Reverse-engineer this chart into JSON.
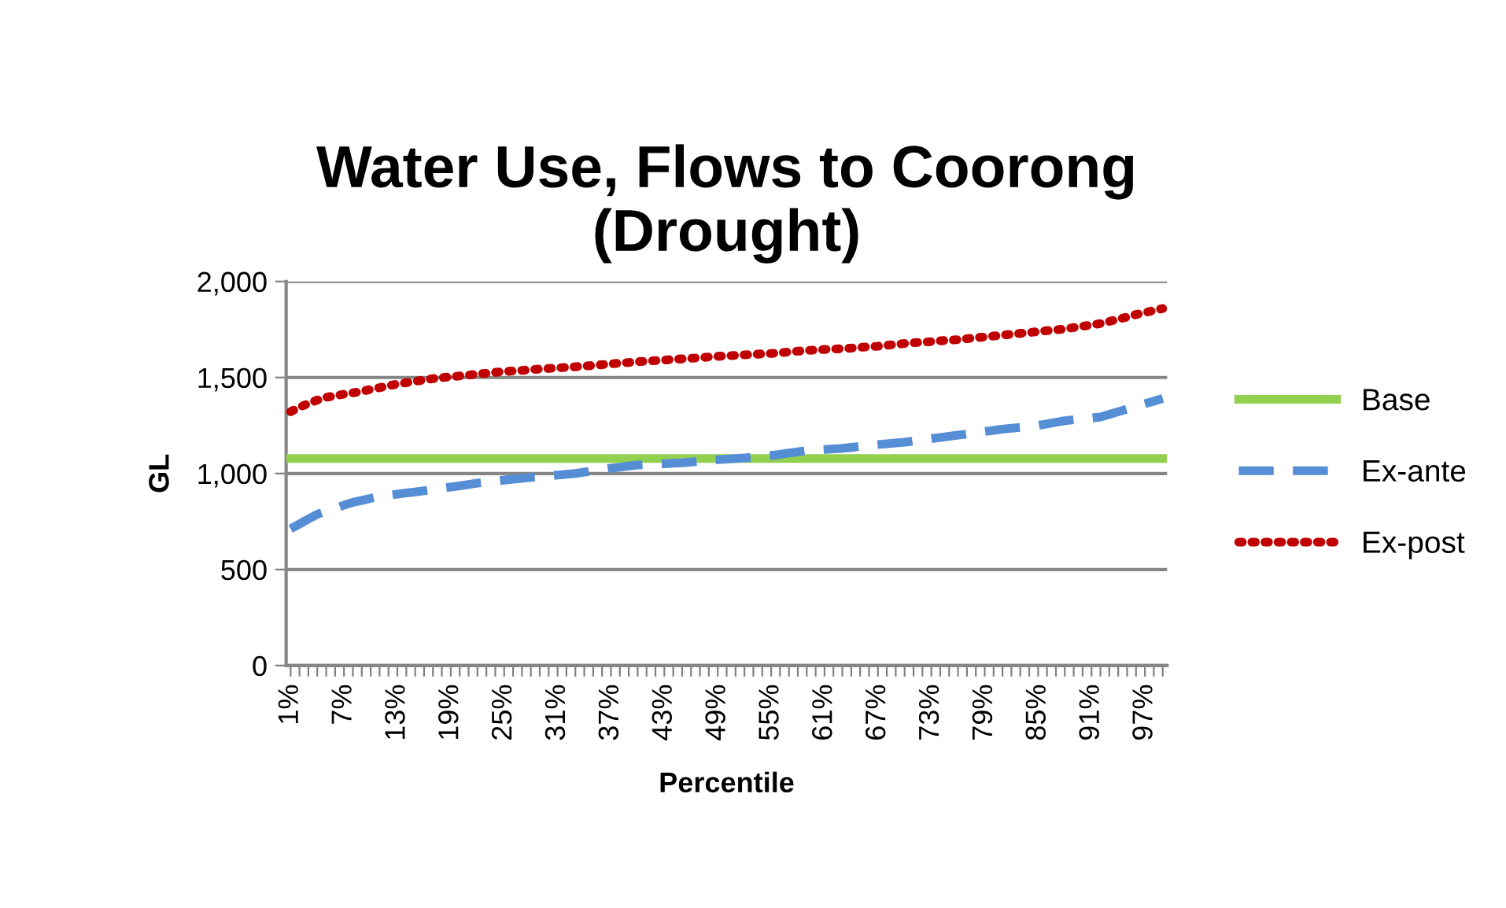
{
  "chart_data": {
    "type": "line",
    "title": "Water Use, Flows to Coorong\n(Drought)",
    "xlabel": "Percentile",
    "ylabel": "GL",
    "categories": [
      "1%",
      null,
      null,
      null,
      null,
      null,
      "7%",
      null,
      null,
      null,
      null,
      null,
      "13%",
      null,
      null,
      null,
      null,
      null,
      "19%",
      null,
      null,
      null,
      null,
      null,
      "25%",
      null,
      null,
      null,
      null,
      null,
      "31%",
      null,
      null,
      null,
      null,
      null,
      "37%",
      null,
      null,
      null,
      null,
      null,
      "43%",
      null,
      null,
      null,
      null,
      null,
      "49%",
      null,
      null,
      null,
      null,
      null,
      "55%",
      null,
      null,
      null,
      null,
      null,
      "61%",
      null,
      null,
      null,
      null,
      null,
      "67%",
      null,
      null,
      null,
      null,
      null,
      "73%",
      null,
      null,
      null,
      null,
      null,
      "79%",
      null,
      null,
      null,
      null,
      null,
      "85%",
      null,
      null,
      null,
      null,
      null,
      "91%",
      null,
      null,
      null,
      null,
      null,
      "97%",
      null,
      null
    ],
    "series": [
      {
        "name": "Base",
        "color": "#92d050",
        "line_style": "solid",
        "values": [
          1078,
          1078,
          1078,
          1078,
          1078,
          1078,
          1078,
          1078,
          1078,
          1078,
          1078,
          1078,
          1078,
          1078,
          1078,
          1078,
          1078,
          1078,
          1078,
          1078,
          1078,
          1078,
          1078,
          1078,
          1078,
          1078,
          1078,
          1078,
          1078,
          1078,
          1078,
          1078,
          1078,
          1078,
          1078,
          1078,
          1078,
          1078,
          1078,
          1078,
          1078,
          1078,
          1078,
          1078,
          1078,
          1078,
          1078,
          1078,
          1078,
          1078,
          1078,
          1078,
          1078,
          1078,
          1078,
          1078,
          1078,
          1078,
          1078,
          1078,
          1078,
          1078,
          1078,
          1078,
          1078,
          1078,
          1078,
          1078,
          1078,
          1078,
          1078,
          1078,
          1078,
          1078,
          1078,
          1078,
          1078,
          1078,
          1078,
          1078,
          1078,
          1078,
          1078,
          1078,
          1078,
          1078,
          1078,
          1078,
          1078,
          1078,
          1078,
          1078,
          1078,
          1078,
          1078,
          1078,
          1078,
          1078,
          1078
        ]
      },
      {
        "name": "Ex-ante",
        "color": "#558ed5",
        "line_style": "dashed",
        "values": [
          712,
          737,
          763,
          788,
          804,
          819,
          835,
          850,
          860,
          871,
          881,
          887,
          893,
          899,
          904,
          910,
          916,
          923,
          930,
          936,
          943,
          950,
          955,
          961,
          966,
          971,
          975,
          980,
          984,
          988,
          992,
          996,
          1000,
          1007,
          1014,
          1021,
          1028,
          1033,
          1039,
          1044,
          1046,
          1049,
          1051,
          1054,
          1056,
          1060,
          1065,
          1069,
          1072,
          1075,
          1078,
          1081,
          1085,
          1090,
          1094,
          1100,
          1107,
          1113,
          1119,
          1122,
          1125,
          1128,
          1131,
          1136,
          1142,
          1147,
          1151,
          1155,
          1159,
          1163,
          1169,
          1176,
          1182,
          1188,
          1194,
          1200,
          1206,
          1212,
          1219,
          1225,
          1231,
          1236,
          1240,
          1245,
          1250,
          1258,
          1267,
          1275,
          1280,
          1284,
          1289,
          1294,
          1308,
          1322,
          1336,
          1350,
          1364,
          1377,
          1391
        ]
      },
      {
        "name": "Ex-post",
        "color": "#c00000",
        "line_style": "dotted",
        "values": [
          1322,
          1345,
          1365,
          1382,
          1397,
          1405,
          1413,
          1420,
          1428,
          1438,
          1447,
          1457,
          1466,
          1473,
          1480,
          1487,
          1494,
          1499,
          1504,
          1508,
          1513,
          1518,
          1522,
          1527,
          1531,
          1534,
          1537,
          1541,
          1544,
          1547,
          1550,
          1553,
          1556,
          1559,
          1563,
          1567,
          1571,
          1575,
          1578,
          1582,
          1585,
          1588,
          1591,
          1594,
          1597,
          1600,
          1603,
          1607,
          1610,
          1613,
          1615,
          1618,
          1620,
          1623,
          1625,
          1629,
          1633,
          1637,
          1641,
          1643,
          1646,
          1648,
          1650,
          1653,
          1657,
          1660,
          1663,
          1668,
          1672,
          1677,
          1681,
          1684,
          1687,
          1691,
          1694,
          1697,
          1702,
          1707,
          1711,
          1716,
          1721,
          1725,
          1730,
          1734,
          1739,
          1744,
          1748,
          1753,
          1760,
          1767,
          1774,
          1781,
          1792,
          1803,
          1815,
          1828,
          1838,
          1849,
          1859
        ]
      }
    ],
    "ylim": [
      0,
      2000
    ],
    "yticks": [
      0,
      500,
      {
        "value": 1000,
        "label": "1,000"
      },
      {
        "value": 1500,
        "label": "1,500"
      },
      {
        "value": 2000,
        "label": "2,000"
      }
    ],
    "grid": "y",
    "legend": "right",
    "marker": "none"
  }
}
